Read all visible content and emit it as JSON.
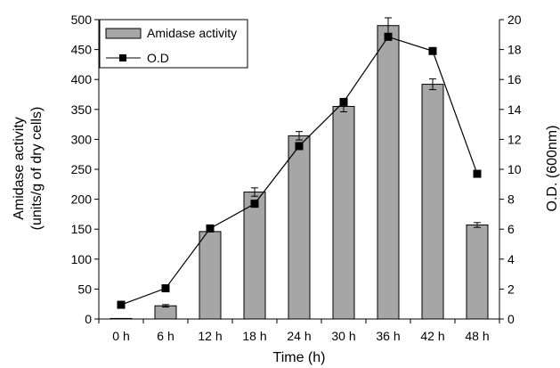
{
  "chart_data": {
    "type": "bar",
    "categories": [
      "0 h",
      "6 h",
      "12 h",
      "18 h",
      "24 h",
      "30 h",
      "36 h",
      "42 h",
      "48 h"
    ],
    "series": [
      {
        "name": "Amidase activity",
        "type": "bar",
        "axis": "left",
        "color": "#a6a6a6",
        "values": [
          0,
          22,
          146,
          212,
          306,
          355,
          490,
          392,
          157
        ],
        "error": [
          0,
          2,
          0,
          7,
          7,
          9,
          13,
          9,
          4
        ]
      },
      {
        "name": "O.D",
        "type": "line",
        "axis": "right",
        "color": "#000000",
        "values": [
          0.95,
          2.05,
          6.05,
          7.7,
          11.55,
          14.5,
          18.85,
          17.9,
          9.7
        ]
      }
    ],
    "xlabel": "Time (h)",
    "ylabel": [
      "Amidase activity",
      "(units/g of dry cells)"
    ],
    "ylabel_right": "O.D. (600nm)",
    "ylim": [
      0,
      500
    ],
    "ylim_right": [
      0,
      20
    ],
    "yticks": [
      0,
      50,
      100,
      150,
      200,
      250,
      300,
      350,
      400,
      450,
      500
    ],
    "yticks_right": [
      0,
      2,
      4,
      6,
      8,
      10,
      12,
      14,
      16,
      18,
      20
    ],
    "grid": false,
    "legend_position": "top-left"
  }
}
